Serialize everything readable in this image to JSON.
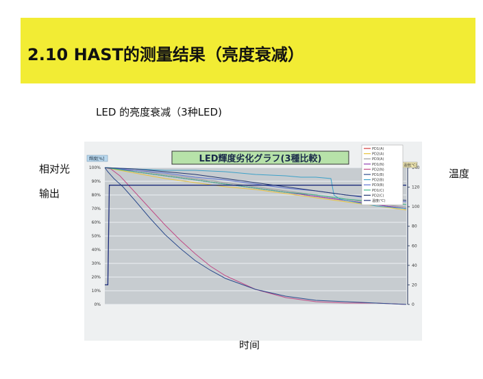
{
  "slide": {
    "title": "2.10 HAST的测量结果（亮度衰减）",
    "subtitle": "LED 的亮度衰减（3种LED)",
    "left_label_line1": "相对光",
    "left_label_line2": "输出",
    "right_label": "温度",
    "bottom_label": "时间"
  },
  "colors": {
    "banner": "#f2ec34",
    "plot_bg": "#c7ccd0",
    "chart_title_box": "#b7e2a9"
  },
  "chart_data": {
    "type": "line",
    "title": "LED輝度劣化グラフ(3種比較)",
    "left_axis_title": "輝度[%]",
    "right_axis_title": "温度[℃]",
    "y_ticks": [
      "100%",
      "90%",
      "80%",
      "70%",
      "60%",
      "50%",
      "40%",
      "30%",
      "20%",
      "10%",
      "0%"
    ],
    "y_tick_values": [
      100,
      90,
      80,
      70,
      60,
      50,
      40,
      30,
      20,
      10,
      0
    ],
    "ylim": [
      0,
      100
    ],
    "y2_ticks": [
      "140",
      "120",
      "100",
      "80",
      "60",
      "40",
      "20",
      "0"
    ],
    "y2_tick_values": [
      140,
      120,
      100,
      80,
      60,
      40,
      20,
      0
    ],
    "y2lim": [
      0,
      140
    ],
    "xlim": [
      0,
      100
    ],
    "legend_position": "top-right",
    "grid": true,
    "series": [
      {
        "name": "PD1(A)",
        "color": "#d23a3a",
        "axis": "left",
        "x": [
          0,
          5,
          10,
          20,
          30,
          40,
          50,
          60,
          70,
          80,
          90,
          100
        ],
        "y": [
          100,
          99,
          97,
          94,
          91,
          88,
          85,
          82,
          79,
          76,
          73,
          70
        ]
      },
      {
        "name": "PD2(A)",
        "color": "#e8c23a",
        "axis": "left",
        "x": [
          0,
          5,
          10,
          20,
          30,
          40,
          50,
          60,
          70,
          80,
          90,
          100
        ],
        "y": [
          100,
          98,
          96,
          92,
          89,
          86,
          84,
          81,
          78,
          75,
          72,
          69
        ]
      },
      {
        "name": "PD3(A)",
        "color": "#9a9a9a",
        "axis": "left",
        "x": [
          0,
          5,
          10,
          20,
          30,
          40,
          50,
          60,
          70,
          80,
          90,
          100
        ],
        "y": [
          100,
          99,
          98,
          95,
          92,
          89,
          86,
          83,
          80,
          77,
          74,
          71
        ]
      },
      {
        "name": "PD1(N)",
        "color": "#8e3bb0",
        "axis": "left",
        "x": [
          0,
          5,
          10,
          20,
          30,
          40,
          50,
          60,
          70,
          80,
          90,
          100
        ],
        "y": [
          100,
          99,
          97,
          94,
          91,
          88,
          85,
          82,
          79,
          76,
          73,
          70
        ]
      },
      {
        "name": "PD2(N)",
        "color": "#c04a86",
        "axis": "left",
        "x": [
          0,
          2,
          5,
          10,
          15,
          20,
          25,
          30,
          35,
          40,
          50,
          60,
          70,
          80,
          90,
          100
        ],
        "y": [
          100,
          99,
          94,
          82,
          70,
          58,
          47,
          37,
          28,
          21,
          11,
          5,
          2,
          1,
          1,
          0
        ]
      },
      {
        "name": "PD1(B)",
        "color": "#2b4a8c",
        "axis": "left",
        "x": [
          0,
          1,
          3,
          6,
          10,
          15,
          20,
          25,
          30,
          35,
          40,
          50,
          60,
          70,
          80,
          90,
          100
        ],
        "y": [
          100,
          97,
          92,
          86,
          76,
          63,
          51,
          41,
          32,
          25,
          19,
          11,
          6,
          3,
          2,
          1,
          0
        ]
      },
      {
        "name": "PD2(B)",
        "color": "#3aa0c8",
        "axis": "left",
        "x": [
          0,
          10,
          20,
          30,
          40,
          50,
          60,
          65,
          70,
          75,
          76,
          78,
          80,
          85,
          90,
          95,
          100
        ],
        "y": [
          100,
          99,
          98,
          98,
          97,
          95,
          94,
          93,
          93,
          92,
          80,
          77,
          76,
          74,
          72,
          71,
          70
        ]
      },
      {
        "name": "PD3(B)",
        "color": "#5a6fd0",
        "axis": "left",
        "x": [
          0,
          10,
          20,
          30,
          40,
          50,
          60,
          70,
          80,
          90,
          100
        ],
        "y": [
          100,
          98,
          96,
          93,
          91,
          88,
          85,
          83,
          80,
          77,
          75
        ]
      },
      {
        "name": "PD1(C)",
        "color": "#3bb58a",
        "axis": "left",
        "x": [
          0,
          10,
          20,
          30,
          40,
          50,
          60,
          70,
          80,
          90,
          100
        ],
        "y": [
          100,
          97,
          94,
          91,
          88,
          85,
          82,
          80,
          77,
          75,
          73
        ]
      },
      {
        "name": "PD2(C)",
        "color": "#20336e",
        "axis": "left",
        "x": [
          0,
          10,
          20,
          30,
          40,
          50,
          60,
          70,
          80,
          90,
          100
        ],
        "y": [
          100,
          99,
          97,
          95,
          92,
          89,
          86,
          83,
          80,
          78,
          76
        ]
      },
      {
        "name": "温度(℃)",
        "color": "#1a2a7a",
        "axis": "right",
        "x": [
          0,
          1,
          1.5,
          100
        ],
        "y": [
          20,
          20,
          122,
          122
        ]
      }
    ]
  }
}
